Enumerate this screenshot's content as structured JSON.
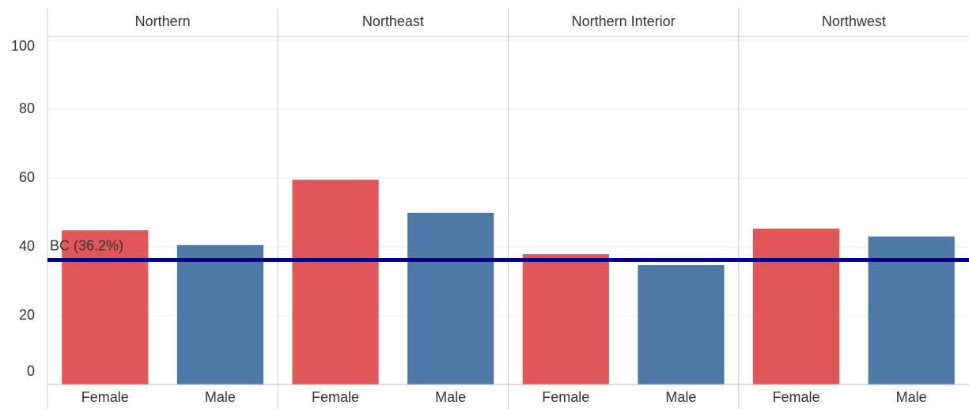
{
  "chart_data": {
    "type": "bar",
    "colors": [
      "#e15759",
      "#4e79a7"
    ],
    "panels": [
      {
        "name": "Northern",
        "categories": [
          "Female",
          "Male"
        ],
        "values": [
          44.8,
          40.5
        ]
      },
      {
        "name": "Northeast",
        "categories": [
          "Female",
          "Male"
        ],
        "values": [
          59.5,
          49.9
        ]
      },
      {
        "name": "Northern Interior",
        "categories": [
          "Female",
          "Male"
        ],
        "values": [
          37.9,
          34.7
        ]
      },
      {
        "name": "Northwest",
        "categories": [
          "Female",
          "Male"
        ],
        "values": [
          45.3,
          43.0
        ]
      }
    ],
    "reference_line": {
      "label": "BC (36.2%)",
      "value": 36.2,
      "color": "#000080"
    },
    "ylim": [
      0,
      100
    ],
    "yticks": [
      0,
      20,
      40,
      60,
      80,
      100
    ],
    "grid": true
  }
}
